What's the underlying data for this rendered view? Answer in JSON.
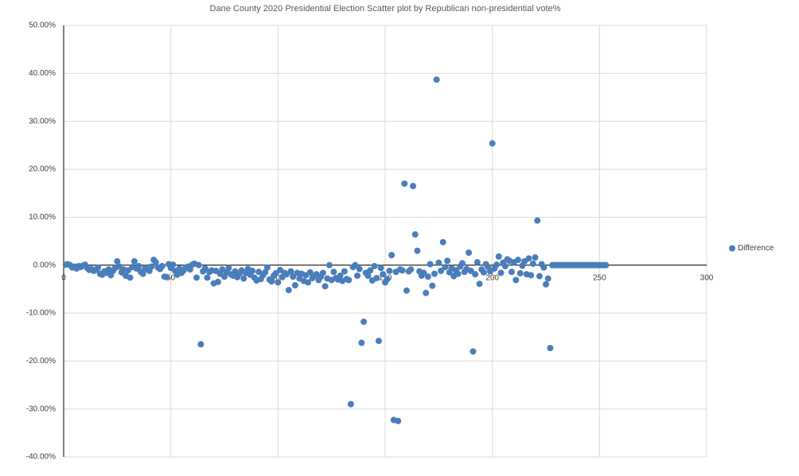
{
  "chart_data": {
    "type": "scatter",
    "title": "Dane County 2020 Presidential Election Scatter plot by Republican non-presidential vote%",
    "x": [
      1,
      2,
      3,
      4,
      5,
      6,
      7,
      8,
      9,
      10,
      11,
      12,
      13,
      14,
      15,
      16,
      17,
      18,
      19,
      20,
      21,
      22,
      23,
      24,
      25,
      26,
      27,
      28,
      29,
      30,
      31,
      32,
      33,
      34,
      35,
      36,
      37,
      38,
      39,
      40,
      41,
      42,
      43,
      44,
      45,
      46,
      47,
      48,
      49,
      50,
      51,
      52,
      53,
      54,
      55,
      56,
      57,
      58,
      59,
      60,
      61,
      62,
      63,
      64,
      65,
      66,
      67,
      68,
      69,
      70,
      71,
      72,
      73,
      74,
      75,
      76,
      77,
      78,
      79,
      80,
      81,
      82,
      83,
      84,
      85,
      86,
      87,
      88,
      89,
      90,
      91,
      92,
      93,
      94,
      95,
      96,
      97,
      98,
      99,
      100,
      101,
      102,
      103,
      104,
      105,
      106,
      107,
      108,
      109,
      110,
      111,
      112,
      113,
      114,
      115,
      116,
      117,
      118,
      119,
      120,
      121,
      122,
      123,
      124,
      125,
      126,
      127,
      128,
      129,
      130,
      131,
      132,
      133,
      134,
      135,
      136,
      137,
      138,
      139,
      140,
      141,
      142,
      143,
      144,
      145,
      146,
      147,
      148,
      149,
      150,
      151,
      152,
      153,
      154,
      155,
      156,
      157,
      158,
      159,
      160,
      161,
      162,
      163,
      164,
      165,
      166,
      167,
      168,
      169,
      170,
      171,
      172,
      173,
      174,
      175,
      176,
      177,
      178,
      179,
      180,
      181,
      182,
      183,
      184,
      185,
      186,
      187,
      188,
      189,
      190,
      191,
      192,
      193,
      194,
      195,
      196,
      197,
      198,
      199,
      200,
      201,
      202,
      203,
      204,
      205,
      206,
      207,
      208,
      209,
      210,
      211,
      212,
      213,
      214,
      215,
      216,
      217,
      218,
      219,
      220,
      221,
      222,
      223,
      224,
      225,
      226,
      227,
      228,
      229,
      230,
      231,
      232,
      233,
      234,
      235,
      236,
      237,
      238,
      239,
      240,
      241,
      242,
      243,
      244,
      245,
      246,
      247,
      248,
      249,
      250,
      251,
      252,
      253
    ],
    "series": [
      {
        "name": "Difference",
        "color": "#4a7ebb",
        "values": [
          0.1,
          0.2,
          0,
          -0.5,
          -0.3,
          -0.7,
          -0.2,
          -0.4,
          -0.1,
          0.1,
          -0.6,
          -1,
          -0.8,
          -1.2,
          -1,
          -0.5,
          -1.8,
          -2,
          -1.3,
          -1.6,
          -0.9,
          -2.1,
          -1.2,
          -0.6,
          0.8,
          -0.3,
          -1.5,
          -0.9,
          -2.2,
          -1.1,
          -2.6,
          -0.4,
          0.8,
          -0.7,
          -0.2,
          -1.4,
          -1.8,
          -0.6,
          -0.9,
          -1.2,
          -0.3,
          1.1,
          0.6,
          -0.5,
          -0.8,
          -0.2,
          -2.4,
          -2.5,
          0.2,
          -0.6,
          0.1,
          -1.2,
          -2,
          -0.7,
          -1.6,
          -1.1,
          -0.5,
          -0.3,
          -0.9,
          0.1,
          0.3,
          -2.6,
          0,
          -16.5,
          -1.3,
          -0.7,
          -2.6,
          -1.4,
          -1.1,
          -3.8,
          -1.2,
          -3.5,
          -1.8,
          -0.9,
          -2.4,
          -1.5,
          -0.6,
          -1.9,
          -2.2,
          -1.3,
          -2.5,
          -1.8,
          -1.1,
          -2.8,
          -1.6,
          -0.8,
          -2,
          -1.2,
          -2.6,
          -3.2,
          -1.4,
          -2.9,
          -2.1,
          -1.5,
          -0.5,
          -3,
          -3.4,
          -2.2,
          -1.7,
          -3.6,
          -1,
          -2.5,
          -1.6,
          -1.9,
          -5.2,
          -1.3,
          -2.4,
          -4.2,
          -1.6,
          -2.8,
          -1.8,
          -3.3,
          -2.1,
          -3.6,
          -1.5,
          -2.7,
          -2.2,
          -1.9,
          -3.1,
          -2.4,
          -1.6,
          -4.4,
          -2.8,
          0,
          -3.1,
          -1.4,
          -2.7,
          -3,
          -2.2,
          -3.3,
          -1.3,
          -2.9,
          -3.1,
          -29,
          -0.4,
          0,
          -2.2,
          -0.8,
          -16.2,
          -11.8,
          -1.6,
          -2.2,
          -1.1,
          -3.2,
          -0.2,
          -2.7,
          -15.8,
          -0.6,
          -1.9,
          -3.6,
          -2.9,
          -1.2,
          2.1,
          -32.3,
          -1.4,
          -32.5,
          -0.9,
          -1.1,
          17,
          -5.3,
          -1.3,
          -0.9,
          16.5,
          6.4,
          3,
          -1.3,
          -2.2,
          -1.6,
          -5.8,
          -2.4,
          0.2,
          -4.3,
          -1.8,
          38.7,
          0.5,
          -1.2,
          4.8,
          -0.4,
          0.9,
          -1.5,
          -0.6,
          -2.3,
          -1.1,
          -1.8,
          -0.3,
          0.4,
          -1.4,
          -0.8,
          2.6,
          -1.2,
          -18,
          -1.9,
          0.6,
          -3.9,
          -0.9,
          -1.5,
          0.2,
          -0.4,
          -1.3,
          25.4,
          -0.7,
          0.1,
          1.8,
          -1.6,
          0.5,
          -0.2,
          1.2,
          0.9,
          -1.4,
          0.6,
          -3.1,
          1.1,
          -1.7,
          -0.1,
          0.8,
          -1.9,
          1.4,
          -2.1,
          0.3,
          1.6,
          9.3,
          -2.3,
          0.2,
          -0.5,
          -4,
          -2.8,
          -17.3,
          0,
          0,
          0,
          0,
          0,
          0,
          0,
          0,
          0,
          0,
          0,
          0,
          0,
          0,
          0,
          0,
          0,
          0,
          0,
          0,
          0,
          0,
          0,
          0,
          0,
          0
        ]
      }
    ],
    "xlim": [
      0,
      300
    ],
    "xticks": [
      0,
      50,
      100,
      150,
      200,
      250,
      300
    ],
    "ylim": [
      -40,
      50
    ],
    "yticks": [
      {
        "value": -40,
        "label": "-40.00%"
      },
      {
        "value": -30,
        "label": "-30.00%"
      },
      {
        "value": -20,
        "label": "-20.00%"
      },
      {
        "value": -10,
        "label": "-10.00%"
      },
      {
        "value": 0,
        "label": "0.00%"
      },
      {
        "value": 10,
        "label": "10.00%"
      },
      {
        "value": 20,
        "label": "20.00%"
      },
      {
        "value": 30,
        "label": "30.00%"
      },
      {
        "value": 40,
        "label": "40.00%"
      },
      {
        "value": 50,
        "label": "50.00%"
      }
    ],
    "grid": true,
    "legend": "right"
  }
}
